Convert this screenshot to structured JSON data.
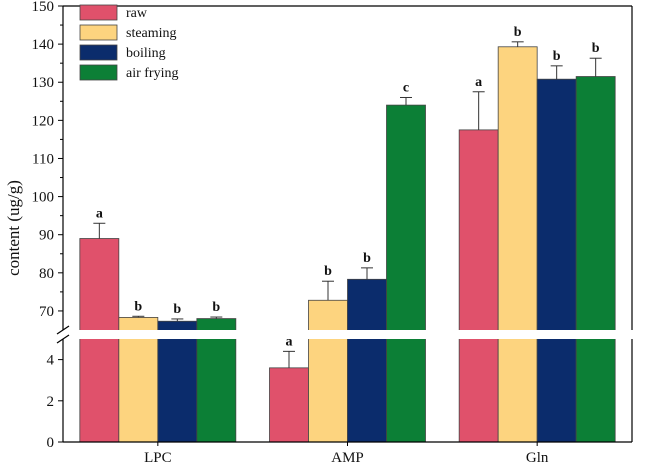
{
  "chart_data": {
    "type": "bar",
    "ylabel": "content (ug/g)",
    "xlabel": "",
    "categories": [
      "LPC",
      "AMP",
      "Gln"
    ],
    "axis_break": {
      "lower_range": [
        0,
        5
      ],
      "upper_range": [
        65,
        150
      ]
    },
    "lower_ticks": [
      0,
      2,
      4
    ],
    "upper_ticks": [
      70,
      80,
      90,
      100,
      110,
      120,
      130,
      140,
      150
    ],
    "legend_position": "top-left",
    "series": [
      {
        "name": "raw",
        "color": "#E0516B",
        "values": [
          89.0,
          3.6,
          117.5
        ],
        "errors": [
          4.0,
          0.8,
          10.0
        ],
        "labels": [
          "a",
          "a",
          "a"
        ]
      },
      {
        "name": "steaming",
        "color": "#FDD47F",
        "values": [
          68.3,
          72.8,
          139.3
        ],
        "errors": [
          0.3,
          5.0,
          1.3
        ],
        "labels": [
          "b",
          "b",
          "b"
        ]
      },
      {
        "name": "boiling",
        "color": "#0B2C6C",
        "values": [
          67.3,
          78.3,
          130.8
        ],
        "errors": [
          0.6,
          3.0,
          3.5
        ],
        "labels": [
          "b",
          "b",
          "b"
        ]
      },
      {
        "name": "air frying",
        "color": "#0C7F36",
        "values": [
          68.0,
          124.0,
          131.5
        ],
        "errors": [
          0.4,
          2.0,
          4.8
        ],
        "labels": [
          "b",
          "c",
          "b"
        ]
      }
    ]
  }
}
